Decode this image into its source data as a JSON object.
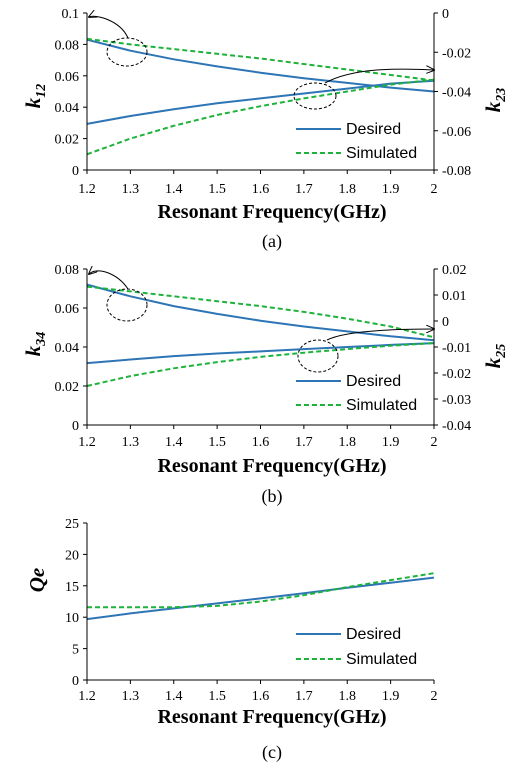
{
  "colors": {
    "desired": "#2E75B6",
    "simulated": "#1DB33A",
    "axis": "#000000"
  },
  "legend": {
    "desired": "Desired",
    "simulated": "Simulated"
  },
  "chart_data": [
    {
      "type": "line",
      "caption": "(a)",
      "xlabel": "Resonant Frequency(GHz)",
      "xlim": [
        1.2,
        2
      ],
      "x_ticks": [
        "1.2",
        "1.3",
        "1.4",
        "1.5",
        "1.6",
        "1.7",
        "1.8",
        "1.9",
        "2"
      ],
      "ylabel_left": "k",
      "ylabel_left_sub": "12",
      "ylabel_right": "k",
      "ylabel_right_sub": "23",
      "ylim_left": [
        0,
        0.1
      ],
      "ylim_right": [
        -0.08,
        0
      ],
      "y_ticks_left": [
        "0",
        "0.02",
        "0.04",
        "0.06",
        "0.08",
        "0.1"
      ],
      "y_ticks_right": [
        "-0.08",
        "-0.06",
        "-0.04",
        "-0.02",
        "0"
      ],
      "legend_placement": "bottom-right",
      "x": [
        1.2,
        1.3,
        1.4,
        1.5,
        1.6,
        1.7,
        1.8,
        1.9,
        2.0
      ],
      "series": [
        {
          "name": "Desired",
          "style": "solid",
          "axis": "left",
          "values": [
            0.083,
            0.076,
            0.0705,
            0.066,
            0.062,
            0.0585,
            0.0555,
            0.0525,
            0.05
          ]
        },
        {
          "name": "Simulated",
          "style": "dashed",
          "axis": "left",
          "values": [
            0.0835,
            0.08,
            0.077,
            0.074,
            0.071,
            0.0675,
            0.064,
            0.0605,
            0.057
          ]
        },
        {
          "name": "Desired",
          "style": "solid",
          "axis": "right",
          "values": [
            -0.0565,
            -0.0525,
            -0.049,
            -0.046,
            -0.0435,
            -0.041,
            -0.0385,
            -0.036,
            -0.0345
          ]
        },
        {
          "name": "Simulated",
          "style": "dashed",
          "axis": "right",
          "values": [
            -0.072,
            -0.064,
            -0.0575,
            -0.052,
            -0.0475,
            -0.0435,
            -0.04,
            -0.0365,
            -0.034
          ]
        }
      ]
    },
    {
      "type": "line",
      "caption": "(b)",
      "xlabel": "Resonant Frequency(GHz)",
      "xlim": [
        1.2,
        2
      ],
      "x_ticks": [
        "1.2",
        "1.3",
        "1.4",
        "1.5",
        "1.6",
        "1.7",
        "1.8",
        "1.9",
        "2"
      ],
      "ylabel_left": "k",
      "ylabel_left_sub": "34",
      "ylabel_right": "k",
      "ylabel_right_sub": "25",
      "ylim_left": [
        0,
        0.08
      ],
      "ylim_right": [
        -0.04,
        0.02
      ],
      "y_ticks_left": [
        "0",
        "0.02",
        "0.04",
        "0.06",
        "0.08"
      ],
      "y_ticks_right": [
        "-0.04",
        "-0.03",
        "-0.02",
        "-0.01",
        "0",
        "0.01",
        "0.02"
      ],
      "legend_placement": "bottom-right",
      "x": [
        1.2,
        1.3,
        1.4,
        1.5,
        1.6,
        1.7,
        1.8,
        1.9,
        2.0
      ],
      "series": [
        {
          "name": "Desired",
          "style": "solid",
          "axis": "left",
          "values": [
            0.072,
            0.066,
            0.061,
            0.057,
            0.0535,
            0.0505,
            0.048,
            0.0455,
            0.0435
          ]
        },
        {
          "name": "Simulated",
          "style": "dashed",
          "axis": "left",
          "values": [
            0.071,
            0.0685,
            0.066,
            0.0635,
            0.061,
            0.058,
            0.0545,
            0.0505,
            0.045
          ]
        },
        {
          "name": "Desired",
          "style": "solid",
          "axis": "right",
          "values": [
            -0.0162,
            -0.0148,
            -0.0135,
            -0.0125,
            -0.0117,
            -0.0108,
            -0.01,
            -0.0092,
            -0.0085
          ]
        },
        {
          "name": "Simulated",
          "style": "dashed",
          "axis": "right",
          "values": [
            -0.025,
            -0.0212,
            -0.0182,
            -0.0158,
            -0.0138,
            -0.0122,
            -0.0108,
            -0.0095,
            -0.0085
          ]
        }
      ]
    },
    {
      "type": "line",
      "caption": "(c)",
      "xlabel": "Resonant Frequency(GHz)",
      "xlim": [
        1.2,
        2
      ],
      "x_ticks": [
        "1.2",
        "1.3",
        "1.4",
        "1.5",
        "1.6",
        "1.7",
        "1.8",
        "1.9",
        "2"
      ],
      "ylabel_left": "Qe",
      "ylabel_left_sub": "",
      "ylim_left": [
        0,
        25
      ],
      "y_ticks_left": [
        "0",
        "5",
        "10",
        "15",
        "20",
        "25"
      ],
      "legend_placement": "bottom-right",
      "x": [
        1.2,
        1.3,
        1.4,
        1.5,
        1.6,
        1.7,
        1.8,
        1.9,
        2.0
      ],
      "series": [
        {
          "name": "Desired",
          "style": "solid",
          "axis": "left",
          "values": [
            9.7,
            10.6,
            11.4,
            12.2,
            13.0,
            13.8,
            14.7,
            15.5,
            16.3
          ]
        },
        {
          "name": "Simulated",
          "style": "dashed",
          "axis": "left",
          "values": [
            11.6,
            11.6,
            11.6,
            11.8,
            12.5,
            13.5,
            14.8,
            15.9,
            17.0
          ]
        }
      ]
    }
  ]
}
